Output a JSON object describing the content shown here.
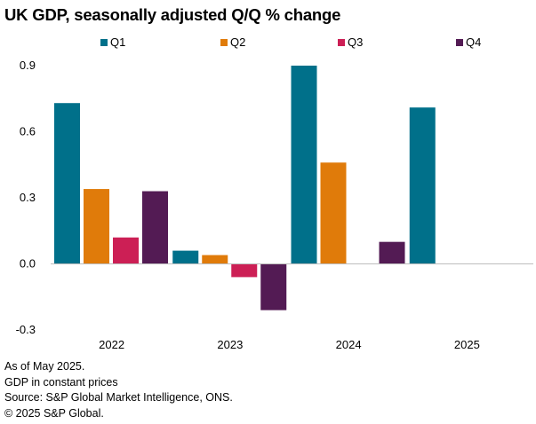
{
  "title": "UK GDP, seasonally adjusted Q/Q % change",
  "notes": [
    "As of May 2025.",
    "GDP in constant prices",
    "Source: S&P Global Market Intelligence, ONS.",
    "© 2025 S&P Global."
  ],
  "chart_data": {
    "type": "bar",
    "title": "UK GDP, seasonally adjusted Q/Q % change",
    "categories": [
      "2022",
      "2023",
      "2024",
      "2025"
    ],
    "series": [
      {
        "name": "Q1",
        "color": "#00708a",
        "values": [
          0.73,
          0.06,
          0.9,
          0.71
        ]
      },
      {
        "name": "Q2",
        "color": "#e07b0a",
        "values": [
          0.34,
          0.04,
          0.46,
          null
        ]
      },
      {
        "name": "Q3",
        "color": "#cc1f55",
        "values": [
          0.12,
          -0.06,
          0.0,
          null
        ]
      },
      {
        "name": "Q4",
        "color": "#531b54",
        "values": [
          0.33,
          -0.21,
          0.1,
          null
        ]
      }
    ],
    "ylim": [
      -0.3,
      0.9
    ],
    "yticks": [
      "-0.3",
      "0.0",
      "0.3",
      "0.6",
      "0.9"
    ],
    "legend": "top",
    "grid": false
  }
}
